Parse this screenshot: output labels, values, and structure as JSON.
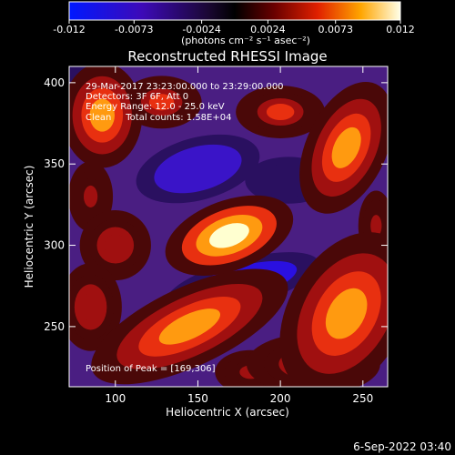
{
  "chart_data": {
    "type": "heatmap",
    "title": "Reconstructed RHESSI Image",
    "xlabel": "Heliocentric X (arcsec)",
    "ylabel": "Heliocentric Y (arcsec)",
    "xlim": [
      72,
      265
    ],
    "ylim": [
      213,
      410
    ],
    "x_ticks": [
      100,
      150,
      200,
      250
    ],
    "y_ticks": [
      250,
      300,
      350,
      400
    ],
    "colorbar": {
      "range": [
        -0.012,
        0.012
      ],
      "ticks": [
        "-0.012",
        "-0.0073",
        "-0.0024",
        "0.0024",
        "0.0073",
        "0.012"
      ],
      "label": "(photons cm⁻² s⁻¹ asec⁻²)"
    },
    "annotations": [
      "29-Mar-2017 23:23:00.000 to 23:29:00.000",
      "Detectors: 3F 6F, Att 0",
      "Energy Range: 12.0 - 25.0 keV",
      "Clean     Total counts: 1.58E+04"
    ],
    "peak_label": "Position of Peak = [169,306]",
    "peak": [
      169,
      306
    ],
    "features": [
      {
        "x": 169,
        "y": 306,
        "rx": 30,
        "ry": 16,
        "angle": -20,
        "value": 0.0118
      },
      {
        "x": 145,
        "y": 250,
        "rx": 48,
        "ry": 18,
        "angle": -25,
        "value": 0.0082
      },
      {
        "x": 92,
        "y": 380,
        "rx": 18,
        "ry": 24,
        "angle": 0,
        "value": 0.0088
      },
      {
        "x": 128,
        "y": 388,
        "rx": 18,
        "ry": 12,
        "angle": 0,
        "value": 0.0055
      },
      {
        "x": 200,
        "y": 382,
        "rx": 20,
        "ry": 12,
        "angle": 0,
        "value": 0.0058
      },
      {
        "x": 240,
        "y": 360,
        "rx": 18,
        "ry": 32,
        "angle": 25,
        "value": 0.0078
      },
      {
        "x": 100,
        "y": 300,
        "rx": 16,
        "ry": 16,
        "angle": 0,
        "value": 0.0048
      },
      {
        "x": 85,
        "y": 330,
        "rx": 10,
        "ry": 16,
        "angle": 0,
        "value": 0.004
      },
      {
        "x": 240,
        "y": 258,
        "rx": 26,
        "ry": 40,
        "angle": 30,
        "value": 0.008
      },
      {
        "x": 85,
        "y": 262,
        "rx": 14,
        "ry": 20,
        "angle": 0,
        "value": 0.005
      },
      {
        "x": 220,
        "y": 227,
        "rx": 30,
        "ry": 14,
        "angle": 0,
        "value": 0.006
      },
      {
        "x": 182,
        "y": 222,
        "rx": 16,
        "ry": 10,
        "angle": 0,
        "value": 0.004
      },
      {
        "x": 258,
        "y": 312,
        "rx": 8,
        "ry": 16,
        "angle": 0,
        "value": 0.004
      },
      {
        "x": 150,
        "y": 347,
        "rx": 32,
        "ry": 16,
        "angle": -15,
        "value": -0.0085
      },
      {
        "x": 177,
        "y": 277,
        "rx": 40,
        "ry": 12,
        "angle": -15,
        "value": -0.0095
      },
      {
        "x": 110,
        "y": 230,
        "rx": 18,
        "ry": 12,
        "angle": 0,
        "value": -0.0065
      },
      {
        "x": 205,
        "y": 340,
        "rx": 22,
        "ry": 12,
        "angle": 0,
        "value": -0.0045
      },
      {
        "x": 85,
        "y": 405,
        "rx": 12,
        "ry": 8,
        "angle": 0,
        "value": -0.005
      }
    ]
  },
  "footer": {
    "timestamp": "6-Sep-2022 03:40"
  }
}
